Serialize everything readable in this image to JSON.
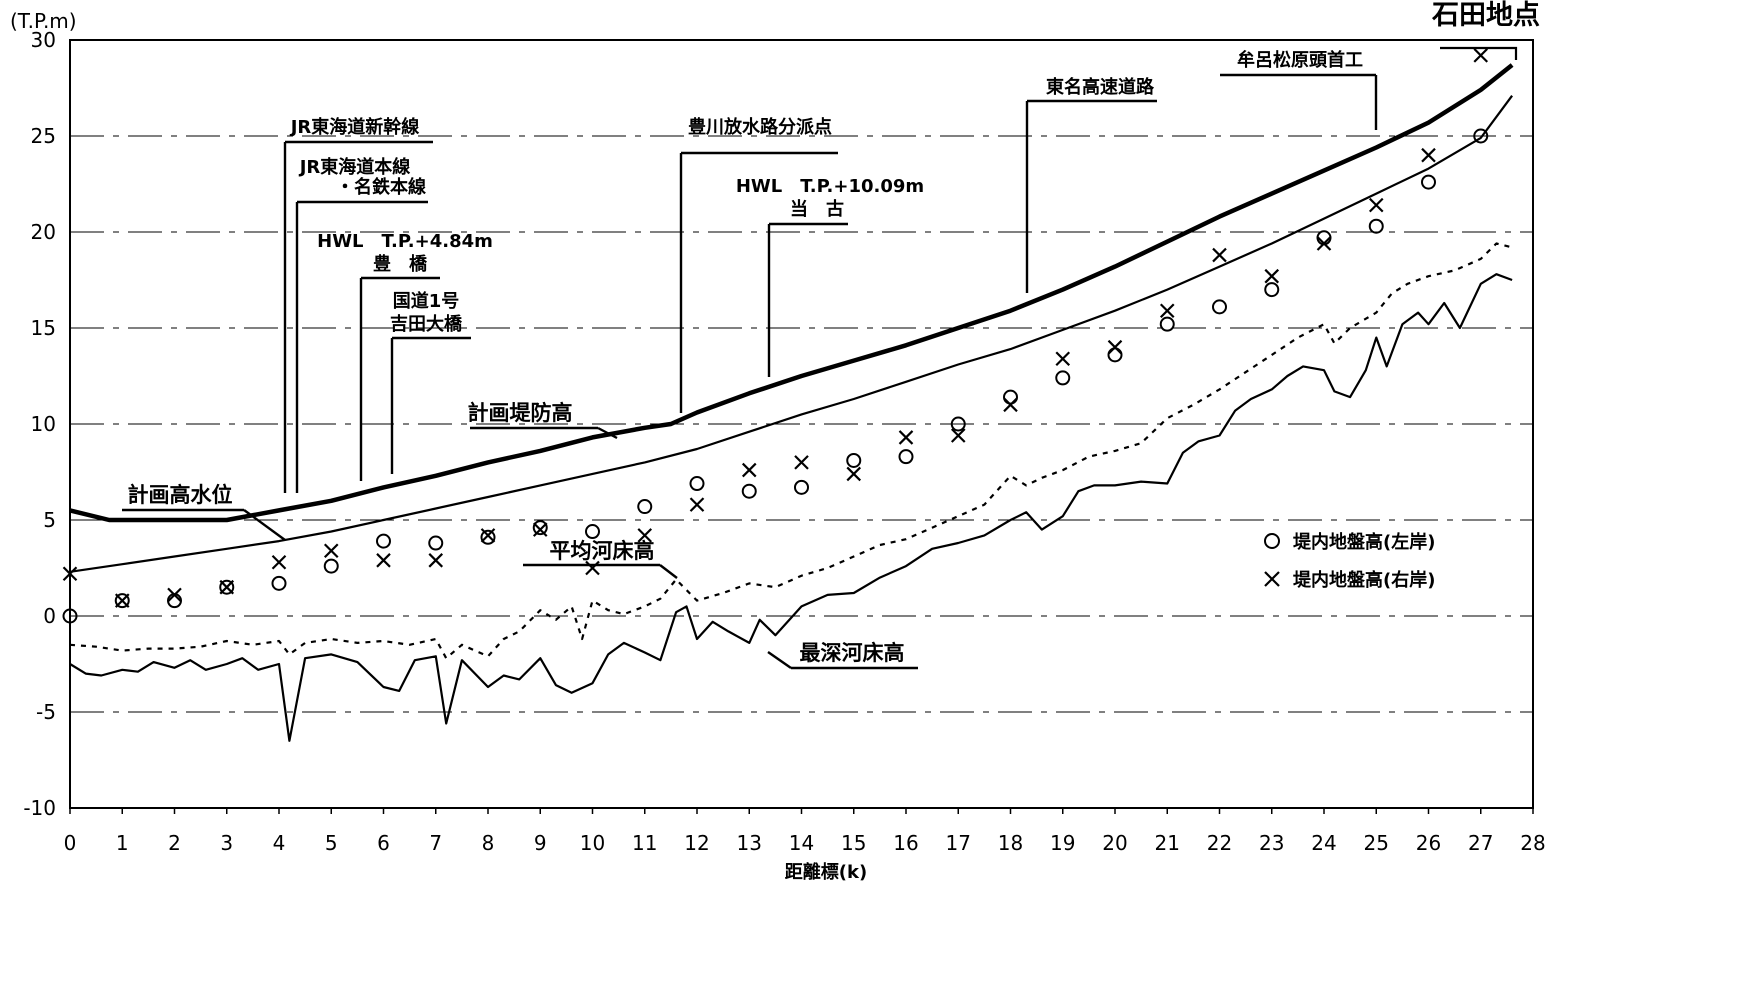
{
  "chart_data": {
    "type": "line",
    "title": "石田地点",
    "xlabel": "距離標(k)",
    "ylabel": "(T.P.m)",
    "xlim": [
      0,
      28
    ],
    "ylim": [
      -10,
      30
    ],
    "x_ticks": [
      "0",
      "1",
      "2",
      "3",
      "4",
      "5",
      "6",
      "7",
      "8",
      "9",
      "10",
      "11",
      "12",
      "13",
      "14",
      "15",
      "16",
      "17",
      "18",
      "19",
      "20",
      "21",
      "22",
      "23",
      "24",
      "25",
      "26",
      "27",
      "28"
    ],
    "y_ticks": [
      "30",
      "25",
      "20",
      "15",
      "10",
      "5",
      "0",
      "-5",
      "-10"
    ],
    "grid": "horizontal dashed",
    "series": [
      {
        "name": "計画堤防高",
        "style": "thick-line",
        "x": [
          0,
          0.75,
          1.5,
          2.25,
          3,
          4,
          5,
          6,
          7,
          8,
          9,
          10,
          11,
          11.5,
          12,
          13,
          14,
          15,
          16,
          17,
          18,
          19,
          20,
          21,
          22,
          23,
          24,
          25,
          26,
          27,
          27.6
        ],
        "y": [
          5.5,
          5.0,
          5.0,
          5.0,
          5.0,
          5.5,
          6.0,
          6.7,
          7.3,
          8.0,
          8.6,
          9.3,
          9.8,
          10.0,
          10.6,
          11.6,
          12.5,
          13.3,
          14.1,
          15.0,
          15.9,
          17.0,
          18.2,
          19.5,
          20.8,
          22.0,
          23.2,
          24.4,
          25.7,
          27.4,
          28.7
        ]
      },
      {
        "name": "計画高水位",
        "style": "line",
        "x": [
          0,
          1,
          2,
          3,
          4,
          5,
          6,
          7,
          8,
          9,
          10,
          11,
          12,
          13,
          14,
          15,
          16,
          17,
          18,
          19,
          20,
          21,
          22,
          23,
          24,
          25,
          26,
          27,
          27.6
        ],
        "y": [
          2.3,
          2.7,
          3.1,
          3.5,
          3.9,
          4.4,
          5.0,
          5.6,
          6.2,
          6.8,
          7.4,
          8.0,
          8.7,
          9.6,
          10.5,
          11.3,
          12.2,
          13.1,
          13.9,
          14.9,
          15.9,
          17.0,
          18.2,
          19.4,
          20.7,
          22.0,
          23.3,
          24.9,
          27.1
        ]
      },
      {
        "name": "平均河床高",
        "style": "dotted-line",
        "x": [
          0,
          0.5,
          1,
          1.5,
          2,
          2.5,
          3,
          3.5,
          4,
          4.2,
          4.5,
          5,
          5.5,
          6,
          6.5,
          7,
          7.2,
          7.5,
          8,
          8.3,
          8.6,
          9,
          9.3,
          9.6,
          9.8,
          10,
          10.3,
          10.6,
          11,
          11.3,
          11.6,
          12,
          12.5,
          13,
          13.5,
          14,
          14.5,
          15,
          15.5,
          16,
          16.5,
          17,
          17.5,
          18,
          18.3,
          18.6,
          19,
          19.5,
          20,
          20.5,
          21,
          21.5,
          22,
          22.5,
          23,
          23.5,
          24,
          24.2,
          24.5,
          25,
          25.3,
          25.6,
          26,
          26.5,
          27,
          27.3,
          27.6
        ],
        "y": [
          -1.5,
          -1.6,
          -1.8,
          -1.7,
          -1.7,
          -1.6,
          -1.3,
          -1.5,
          -1.3,
          -2.0,
          -1.4,
          -1.2,
          -1.4,
          -1.3,
          -1.5,
          -1.2,
          -2.2,
          -1.5,
          -2.1,
          -1.2,
          -0.8,
          0.3,
          -0.2,
          0.5,
          -1.2,
          0.8,
          0.3,
          0.1,
          0.5,
          0.9,
          1.9,
          0.8,
          1.2,
          1.7,
          1.5,
          2.1,
          2.5,
          3.1,
          3.7,
          4.0,
          4.6,
          5.2,
          5.8,
          7.3,
          6.8,
          7.2,
          7.6,
          8.3,
          8.6,
          9.0,
          10.3,
          11.0,
          11.8,
          12.7,
          13.6,
          14.5,
          15.2,
          14.2,
          15.0,
          15.8,
          16.8,
          17.3,
          17.7,
          18.0,
          18.6,
          19.4,
          19.2
        ]
      },
      {
        "name": "最深河床高",
        "style": "line",
        "x": [
          0,
          0.3,
          0.6,
          1,
          1.3,
          1.6,
          2,
          2.3,
          2.6,
          3,
          3.3,
          3.6,
          4,
          4.2,
          4.5,
          5,
          5.5,
          6,
          6.3,
          6.6,
          7,
          7.2,
          7.5,
          8,
          8.3,
          8.6,
          9,
          9.3,
          9.6,
          10,
          10.3,
          10.6,
          11,
          11.3,
          11.6,
          11.8,
          12,
          12.3,
          12.6,
          13,
          13.2,
          13.5,
          14,
          14.5,
          15,
          15.5,
          16,
          16.5,
          17,
          17.5,
          18,
          18.3,
          18.6,
          19,
          19.3,
          19.6,
          20,
          20.5,
          21,
          21.3,
          21.6,
          22,
          22.3,
          22.6,
          23,
          23.3,
          23.6,
          24,
          24.2,
          24.5,
          24.8,
          25,
          25.2,
          25.5,
          25.8,
          26,
          26.3,
          26.6,
          27,
          27.3,
          27.6
        ],
        "y": [
          -2.5,
          -3.0,
          -3.1,
          -2.8,
          -2.9,
          -2.4,
          -2.7,
          -2.3,
          -2.8,
          -2.5,
          -2.2,
          -2.8,
          -2.5,
          -6.5,
          -2.2,
          -2.0,
          -2.4,
          -3.7,
          -3.9,
          -2.3,
          -2.1,
          -5.6,
          -2.3,
          -3.7,
          -3.1,
          -3.3,
          -2.2,
          -3.6,
          -4.0,
          -3.5,
          -2.0,
          -1.4,
          -1.9,
          -2.3,
          0.2,
          0.5,
          -1.2,
          -0.3,
          -0.8,
          -1.4,
          -0.2,
          -1.0,
          0.5,
          1.1,
          1.2,
          2.0,
          2.6,
          3.5,
          3.8,
          4.2,
          5.0,
          5.4,
          4.5,
          5.2,
          6.5,
          6.8,
          6.8,
          7.0,
          6.9,
          8.5,
          9.1,
          9.4,
          10.7,
          11.3,
          11.8,
          12.5,
          13.0,
          12.8,
          11.7,
          11.4,
          12.8,
          14.5,
          13.0,
          15.2,
          15.8,
          15.2,
          16.3,
          15.0,
          17.3,
          17.8,
          17.5
        ]
      },
      {
        "name": "堤内地盤高(左岸)",
        "style": "circle-markers",
        "x": [
          0,
          1,
          2,
          3,
          4,
          5,
          6,
          7,
          8,
          9,
          10,
          11,
          12,
          13,
          14,
          15,
          16,
          17,
          18,
          19,
          20,
          21,
          22,
          23,
          24,
          25,
          26,
          27
        ],
        "y": [
          0.0,
          0.8,
          0.8,
          1.5,
          1.7,
          2.6,
          3.9,
          3.8,
          4.1,
          4.6,
          4.4,
          5.7,
          6.9,
          6.5,
          6.7,
          8.1,
          8.3,
          10.0,
          11.4,
          12.4,
          13.6,
          15.2,
          16.1,
          17.0,
          19.7,
          20.3,
          22.6,
          25.0
        ]
      },
      {
        "name": "堤内地盤高(右岸)",
        "style": "x-markers",
        "x": [
          0,
          1,
          2,
          3,
          4,
          5,
          6,
          7,
          8,
          9,
          10,
          11,
          12,
          13,
          14,
          15,
          16,
          17,
          18,
          19,
          20,
          21,
          22,
          23,
          24,
          25,
          26,
          27
        ],
        "y": [
          2.2,
          0.8,
          1.1,
          1.5,
          2.8,
          3.4,
          2.9,
          2.9,
          4.2,
          4.5,
          2.5,
          4.2,
          5.8,
          7.6,
          8.0,
          7.4,
          9.3,
          9.4,
          11.0,
          13.4,
          14.0,
          15.9,
          18.8,
          17.7,
          19.4,
          21.4,
          24.0,
          29.2
        ]
      }
    ],
    "legend": {
      "placement": "right",
      "entries": [
        {
          "symbol": "○",
          "label": "堤内地盤高(左岸)"
        },
        {
          "symbol": "×",
          "label": "堤内地盤高(右岸)"
        }
      ]
    },
    "annotations": [
      {
        "id": "keikaku-teibou",
        "text": "計画堤防高",
        "points_to_x": 11,
        "points_to_y": 9.3
      },
      {
        "id": "keikaku-kousui",
        "text": "計画高水位",
        "points_to_x": 4,
        "points_to_y": 3.9
      },
      {
        "id": "heikin-kasho",
        "text": "平均河床高",
        "points_to_x": 11.6,
        "points_to_y": 1.9
      },
      {
        "id": "saishin-kasho",
        "text": "最深河床高",
        "points_to_x": 13.3,
        "points_to_y": -1.6
      },
      {
        "id": "shinkansen",
        "text": "JR東海道新幹線",
        "at_x": 4.3
      },
      {
        "id": "honsen-1",
        "text": "JR東海道本線",
        "at_x": 4.2
      },
      {
        "id": "honsen-2",
        "text": "・名鉄本線",
        "at_x": 4.2
      },
      {
        "id": "hwl-toyo",
        "text": "HWL　T.P.+4.84m",
        "at_x": 5.6
      },
      {
        "id": "toyobashi",
        "text": "豊　橋",
        "at_x": 5.6
      },
      {
        "id": "kokudo-1",
        "text": "国道1号",
        "at_x": 6.2
      },
      {
        "id": "kokudo-2",
        "text": "吉田大橋",
        "at_x": 6.2
      },
      {
        "id": "houryu",
        "text": "豊川放水路分派点",
        "at_x": 11.7
      },
      {
        "id": "hwl-touko",
        "text": "HWL　T.P.+10.09m",
        "at_x": 13.3
      },
      {
        "id": "touko",
        "text": "当　古",
        "at_x": 13.3
      },
      {
        "id": "tomei",
        "text": "東名高速道路",
        "at_x": 18.2
      },
      {
        "id": "muro",
        "text": "牟呂松原頭首工",
        "at_x": 25.0
      }
    ]
  }
}
